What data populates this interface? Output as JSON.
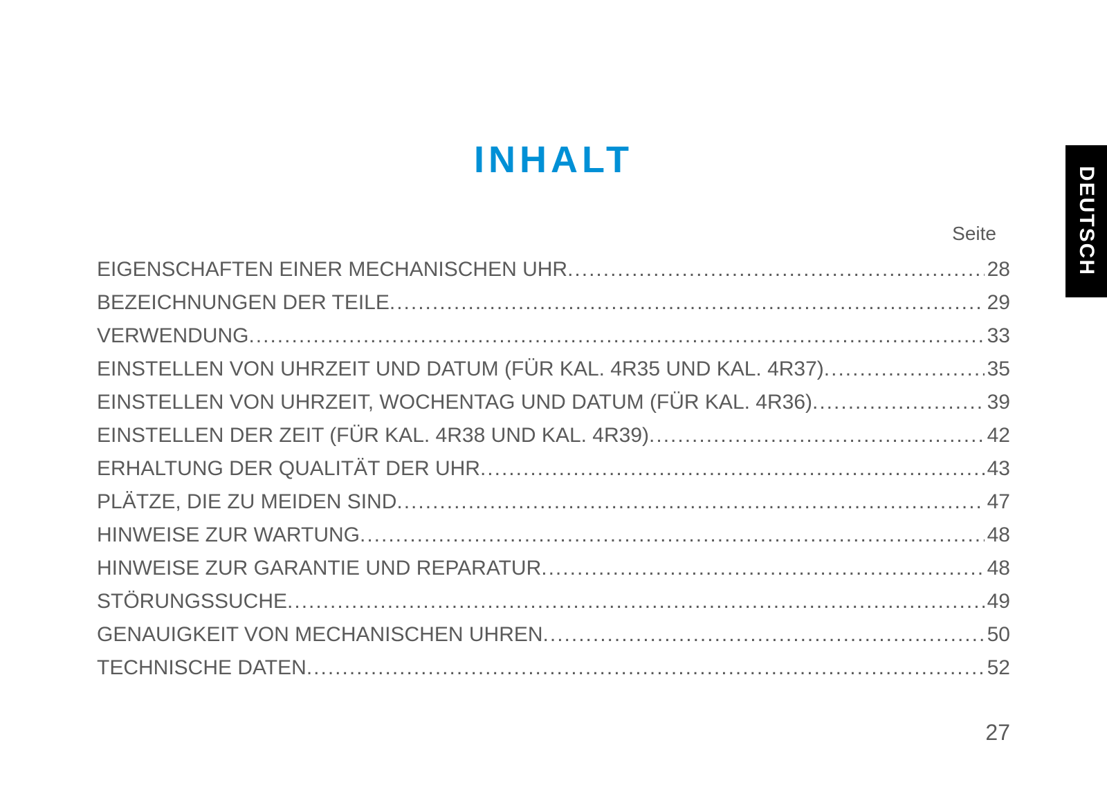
{
  "title": "INHALT",
  "seite_label": "Seite",
  "language_tab": "DEUTSCH",
  "page_number": "27",
  "colors": {
    "title": "#0090d6",
    "text": "#5a5a5a",
    "tab_bg": "#000000",
    "tab_text": "#ffffff",
    "background": "#ffffff"
  },
  "typography": {
    "title_fontsize": 54,
    "title_letter_spacing": 6,
    "body_fontsize": 30,
    "seite_fontsize": 28,
    "pagenum_fontsize": 32,
    "tab_fontsize": 30
  },
  "toc": [
    {
      "label": "EIGENSCHAFTEN EINER MECHANISCHEN UHR ",
      "page": "28"
    },
    {
      "label": "BEZEICHNUNGEN DER TEILE ",
      "page": "29"
    },
    {
      "label": "VERWENDUNG",
      "page": "33"
    },
    {
      "label": "EINSTELLEN VON UHRZEIT UND DATUM (FÜR KAL. 4R35 UND KAL. 4R37) ",
      "page": "35"
    },
    {
      "label": "EINSTELLEN VON UHRZEIT, WOCHENTAG UND DATUM (FÜR KAL. 4R36)",
      "page": "39"
    },
    {
      "label": "EINSTELLEN DER ZEIT (FÜR KAL. 4R38 UND KAL. 4R39) ",
      "page": "42"
    },
    {
      "label": "ERHALTUNG DER QUALITÄT DER UHR ",
      "page": "43"
    },
    {
      "label": "PLÄTZE, DIE ZU MEIDEN SIND ",
      "page": "47"
    },
    {
      "label": "HINWEISE ZUR WARTUNG ",
      "page": "48"
    },
    {
      "label": "HINWEISE ZUR GARANTIE UND REPARATUR ",
      "page": "48"
    },
    {
      "label": "STÖRUNGSSUCHE",
      "page": "49"
    },
    {
      "label": "GENAUIGKEIT VON MECHANISCHEN UHREN ",
      "page": "50"
    },
    {
      "label": "TECHNISCHE DATEN ",
      "page": "52"
    }
  ],
  "dots_fill": "........................................................................................................................................................................................................"
}
